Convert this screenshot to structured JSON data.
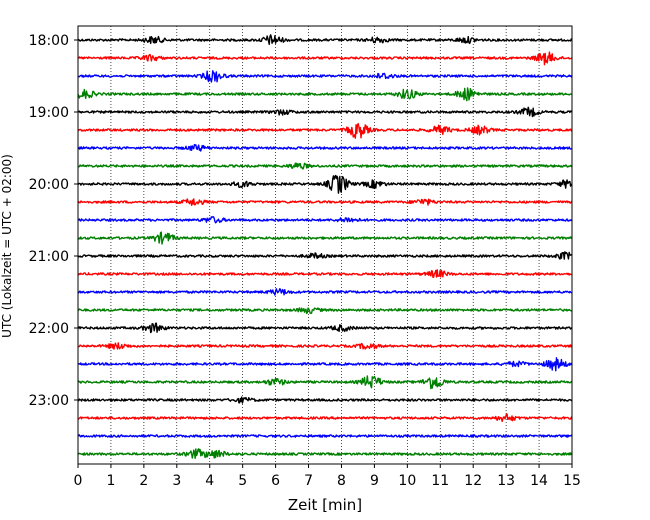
{
  "chart_data": {
    "type": "line",
    "xlabel": "Zeit  [min]",
    "ylabel": "UTC (Lokalzeit = UTC + 02:00)",
    "xlim": [
      0,
      15
    ],
    "x_ticks": [
      "0",
      "1",
      "2",
      "3",
      "4",
      "5",
      "6",
      "7",
      "8",
      "9",
      "10",
      "11",
      "12",
      "13",
      "14",
      "15"
    ],
    "grid": "vertical dotted",
    "y_ticks": [
      "18:00",
      "19:00",
      "20:00",
      "21:00",
      "22:00",
      "23:00"
    ],
    "trace_colors": [
      "#000000",
      "#ff0000",
      "#0000ff",
      "#008000"
    ],
    "trace_interval_min": 15,
    "traces": [
      {
        "start": "18:00",
        "color": "#000000",
        "events": [
          {
            "t": 2.3,
            "amp": 1.2
          },
          {
            "t": 5.9,
            "amp": 1.8
          },
          {
            "t": 9.1,
            "amp": 1.0
          },
          {
            "t": 11.8,
            "amp": 1.0
          }
        ]
      },
      {
        "start": "18:15",
        "color": "#ff0000",
        "events": [
          {
            "t": 2.2,
            "amp": 1.0
          },
          {
            "t": 14.2,
            "amp": 2.2
          }
        ]
      },
      {
        "start": "18:30",
        "color": "#0000ff",
        "events": [
          {
            "t": 4.1,
            "amp": 2.2
          },
          {
            "t": 9.3,
            "amp": 1.0
          }
        ]
      },
      {
        "start": "18:45",
        "color": "#008000",
        "events": [
          {
            "t": 0.2,
            "amp": 1.5
          },
          {
            "t": 10.0,
            "amp": 1.8
          },
          {
            "t": 11.8,
            "amp": 2.2
          }
        ]
      },
      {
        "start": "19:00",
        "color": "#000000",
        "events": [
          {
            "t": 13.7,
            "amp": 1.5
          },
          {
            "t": 6.2,
            "amp": 0.8
          }
        ]
      },
      {
        "start": "19:15",
        "color": "#ff0000",
        "events": [
          {
            "t": 8.5,
            "amp": 3.0
          },
          {
            "t": 11.0,
            "amp": 1.5
          },
          {
            "t": 12.2,
            "amp": 1.5
          }
        ]
      },
      {
        "start": "19:30",
        "color": "#0000ff",
        "events": [
          {
            "t": 3.6,
            "amp": 1.0
          }
        ]
      },
      {
        "start": "19:45",
        "color": "#008000",
        "events": [
          {
            "t": 6.7,
            "amp": 1.0
          }
        ]
      },
      {
        "start": "20:00",
        "color": "#000000",
        "events": [
          {
            "t": 7.9,
            "amp": 3.6
          },
          {
            "t": 5.0,
            "amp": 1.0
          },
          {
            "t": 9.0,
            "amp": 1.3
          },
          {
            "t": 14.9,
            "amp": 1.5
          }
        ]
      },
      {
        "start": "20:15",
        "color": "#ff0000",
        "events": [
          {
            "t": 3.5,
            "amp": 1.2
          },
          {
            "t": 10.5,
            "amp": 1.0
          }
        ]
      },
      {
        "start": "20:30",
        "color": "#0000ff",
        "events": [
          {
            "t": 4.1,
            "amp": 1.0
          },
          {
            "t": 8.2,
            "amp": 0.8
          }
        ]
      },
      {
        "start": "20:45",
        "color": "#008000",
        "events": [
          {
            "t": 2.6,
            "amp": 2.0
          }
        ]
      },
      {
        "start": "21:00",
        "color": "#000000",
        "events": [
          {
            "t": 14.8,
            "amp": 1.2
          },
          {
            "t": 7.2,
            "amp": 0.8
          }
        ]
      },
      {
        "start": "21:15",
        "color": "#ff0000",
        "events": [
          {
            "t": 10.9,
            "amp": 1.3
          }
        ]
      },
      {
        "start": "21:30",
        "color": "#0000ff",
        "events": [
          {
            "t": 6.1,
            "amp": 1.0
          }
        ]
      },
      {
        "start": "21:45",
        "color": "#008000",
        "events": [
          {
            "t": 7.0,
            "amp": 1.0
          }
        ]
      },
      {
        "start": "22:00",
        "color": "#000000",
        "events": [
          {
            "t": 2.3,
            "amp": 1.6
          },
          {
            "t": 8.0,
            "amp": 1.0
          }
        ]
      },
      {
        "start": "22:15",
        "color": "#ff0000",
        "events": [
          {
            "t": 1.2,
            "amp": 1.0
          },
          {
            "t": 8.8,
            "amp": 1.0
          }
        ]
      },
      {
        "start": "22:30",
        "color": "#0000ff",
        "events": [
          {
            "t": 14.5,
            "amp": 2.2
          },
          {
            "t": 13.3,
            "amp": 0.8
          }
        ]
      },
      {
        "start": "22:45",
        "color": "#008000",
        "events": [
          {
            "t": 8.9,
            "amp": 2.4
          },
          {
            "t": 10.8,
            "amp": 2.6
          },
          {
            "t": 6.0,
            "amp": 1.2
          }
        ]
      },
      {
        "start": "23:00",
        "color": "#000000",
        "events": [
          {
            "t": 5.0,
            "amp": 0.8
          }
        ]
      },
      {
        "start": "23:15",
        "color": "#ff0000",
        "events": [
          {
            "t": 13.0,
            "amp": 1.2
          }
        ]
      },
      {
        "start": "23:30",
        "color": "#0000ff",
        "events": []
      },
      {
        "start": "23:45",
        "color": "#008000",
        "events": [
          {
            "t": 3.6,
            "amp": 1.6
          },
          {
            "t": 4.2,
            "amp": 1.3
          }
        ]
      }
    ]
  }
}
